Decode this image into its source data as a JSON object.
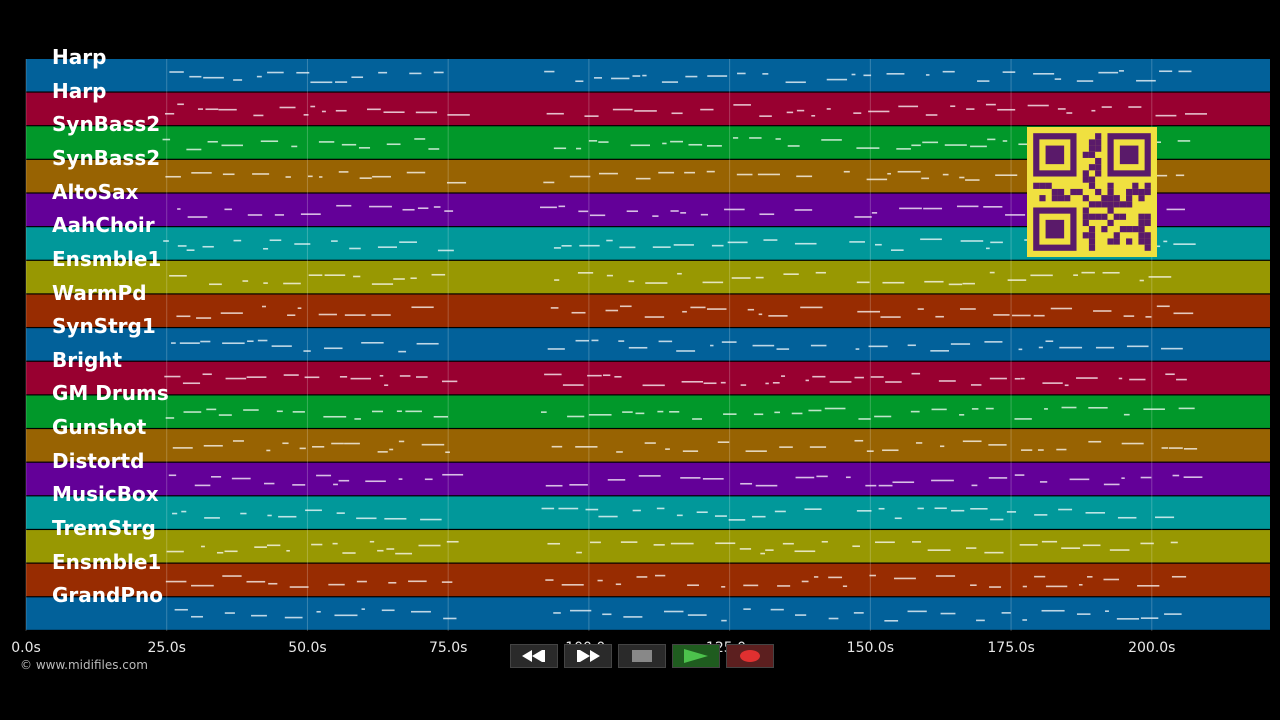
{
  "tracks": [
    {
      "name": "Harp",
      "color": "#02619a"
    },
    {
      "name": "Harp",
      "color": "#980030"
    },
    {
      "name": "SynBass2",
      "color": "#01982a"
    },
    {
      "name": "SynBass2",
      "color": "#986302"
    },
    {
      "name": "AltoSax",
      "color": "#630098"
    },
    {
      "name": "AahChoir",
      "color": "#01989a"
    },
    {
      "name": "Ensmble1",
      "color": "#989802"
    },
    {
      "name": "WarmPd",
      "color": "#982c01"
    },
    {
      "name": "SynStrg1",
      "color": "#02619a"
    },
    {
      "name": "Bright",
      "color": "#980030"
    },
    {
      "name": "GM Drums",
      "color": "#01982a"
    },
    {
      "name": "Gunshot",
      "color": "#986302"
    },
    {
      "name": "Distortd",
      "color": "#630098"
    },
    {
      "name": "MusicBox",
      "color": "#01989a"
    },
    {
      "name": "TremStrg",
      "color": "#989802"
    },
    {
      "name": "Ensmble1",
      "color": "#982c01"
    },
    {
      "name": "GrandPno",
      "color": "#02619a"
    }
  ],
  "time_axis": {
    "ticks": [
      "0.0s",
      "25.0s",
      "50.0s",
      "75.0s",
      "100.0s",
      "125.0s",
      "150.0s",
      "175.0s",
      "200.0s"
    ],
    "tick_values": [
      0,
      25,
      50,
      75,
      100,
      125,
      150,
      175,
      200
    ],
    "max_seconds": 221
  },
  "copyright": "© www.midifiles.com",
  "transport": {
    "rewind": "rewind-icon",
    "fast_forward": "fast-forward-icon",
    "stop": "stop-icon",
    "play": "play-icon",
    "record": "record-icon"
  },
  "qr_code": "qr-code"
}
